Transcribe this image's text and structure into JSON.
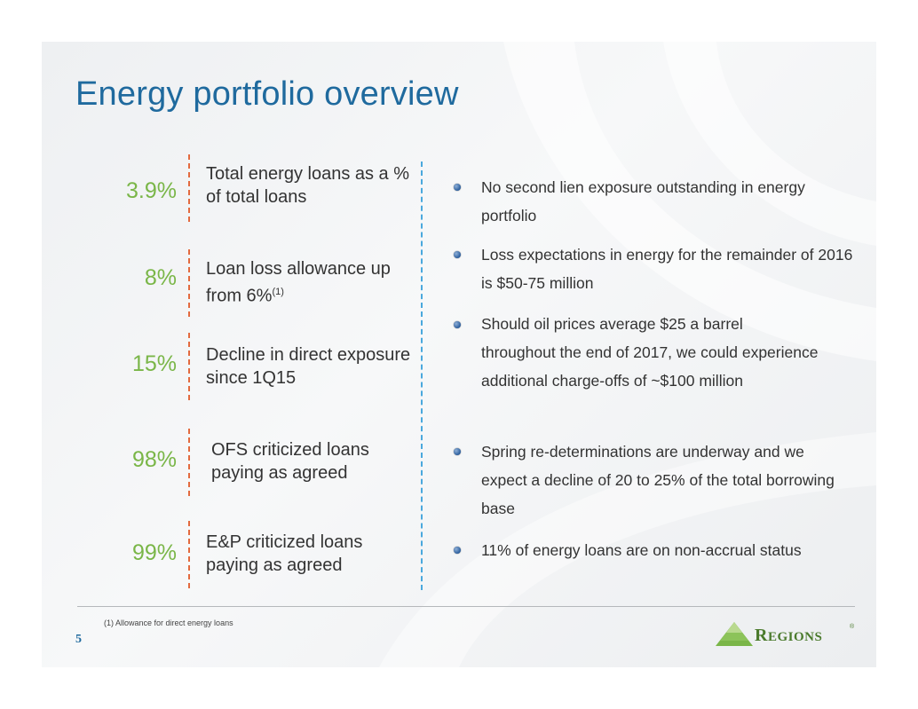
{
  "title": "Energy portfolio overview",
  "stats": [
    {
      "value": "3.9%",
      "text": "Total energy loans as a % of total loans",
      "sup": ""
    },
    {
      "value": "8%",
      "text": "Loan loss allowance up from 6%",
      "sup": "(1)"
    },
    {
      "value": "15%",
      "text": "Decline in direct exposure since 1Q15",
      "sup": ""
    },
    {
      "value": "98%",
      "text": "OFS criticized loans paying as agreed",
      "sup": ""
    },
    {
      "value": "99%",
      "text": "E&P criticized loans paying as agreed",
      "sup": ""
    }
  ],
  "bullets": [
    "No second lien exposure outstanding in energy portfolio",
    "Loss expectations in energy for the remainder of 2016 is $50-75 million",
    "Should oil prices average $25 a barrel throughout the end of 2017, we could experience additional charge-offs of ~$100 million",
    "Spring re-determinations are underway and we expect a decline of 20 to 25% of the total borrowing base",
    "11% of energy loans are on non-accrual status"
  ],
  "footnote": "(1)    Allowance for direct energy loans",
  "page_number": "5",
  "logo": {
    "first_letter": "R",
    "rest": "EGIONS",
    "registered": "®"
  },
  "colors": {
    "title": "#1f6a9e",
    "stat_value": "#7ab648",
    "stat_divider": "#e36a3f",
    "center_divider": "#4aa8dd",
    "logo": "#4a7a2c"
  }
}
